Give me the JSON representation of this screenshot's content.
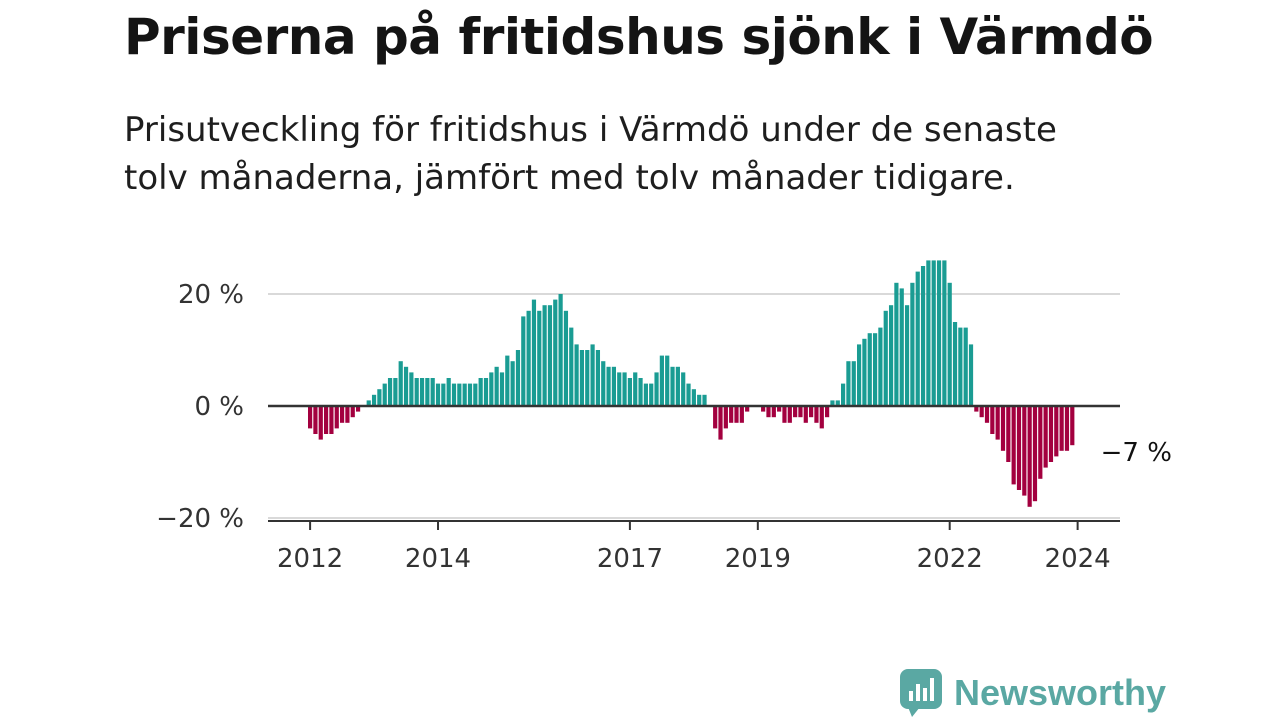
{
  "title": "Priserna på fritidshus sjönk i Värmdö",
  "subtitle": "Prisutveckling för fritidshus i Värmdö under de senaste tolv månaderna, jämfört med tolv månader tidigare.",
  "brand": {
    "name": "Newsworthy",
    "icon": "newsworthy-logo-icon",
    "color": "#5aa8a3"
  },
  "colors": {
    "positive": "#1a9c93",
    "negative": "#a3003f",
    "grid": "#d9d9d9",
    "zero_line": "#333333"
  },
  "chart_data": {
    "type": "bar",
    "x_start": "2012-01",
    "x_end": "2024-06",
    "x_tick_labels": [
      "2012",
      "2014",
      "2017",
      "2019",
      "2022",
      "2024"
    ],
    "x_tick_positions": [
      "2012-01",
      "2014-01",
      "2017-01",
      "2019-01",
      "2022-01",
      "2024-01"
    ],
    "ylim": [
      -20,
      26
    ],
    "y_ticks": [
      20,
      0,
      -20
    ],
    "y_tick_labels": [
      "20 %",
      "0 %",
      "−20 %"
    ],
    "grid": true,
    "annotation": {
      "label": "−7 %",
      "at": "2024-06",
      "value": -7
    },
    "values": [
      -4,
      -5,
      -6,
      -5,
      -5,
      -4,
      -3,
      -3,
      -2,
      -1,
      0,
      1,
      2,
      3,
      4,
      5,
      5,
      8,
      7,
      6,
      5,
      5,
      5,
      5,
      4,
      4,
      5,
      4,
      4,
      4,
      4,
      4,
      5,
      5,
      6,
      7,
      6,
      9,
      8,
      10,
      16,
      17,
      19,
      17,
      18,
      18,
      19,
      20,
      17,
      14,
      11,
      10,
      10,
      11,
      10,
      8,
      7,
      7,
      6,
      6,
      5,
      6,
      5,
      4,
      4,
      6,
      9,
      9,
      7,
      7,
      6,
      4,
      3,
      2,
      2,
      0,
      -4,
      -6,
      -4,
      -3,
      -3,
      -3,
      -1,
      0,
      0,
      -1,
      -2,
      -2,
      -1,
      -3,
      -3,
      -2,
      -2,
      -3,
      -2,
      -3,
      -4,
      -2,
      1,
      1,
      4,
      8,
      8,
      11,
      12,
      13,
      13,
      14,
      17,
      18,
      22,
      21,
      18,
      22,
      24,
      25,
      26,
      26,
      26,
      26,
      22,
      15,
      14,
      14,
      11,
      -1,
      -2,
      -3,
      -5,
      -6,
      -8,
      -10,
      -14,
      -15,
      -16,
      -18,
      -17,
      -13,
      -11,
      -10,
      -9,
      -8,
      -8,
      -7
    ]
  }
}
